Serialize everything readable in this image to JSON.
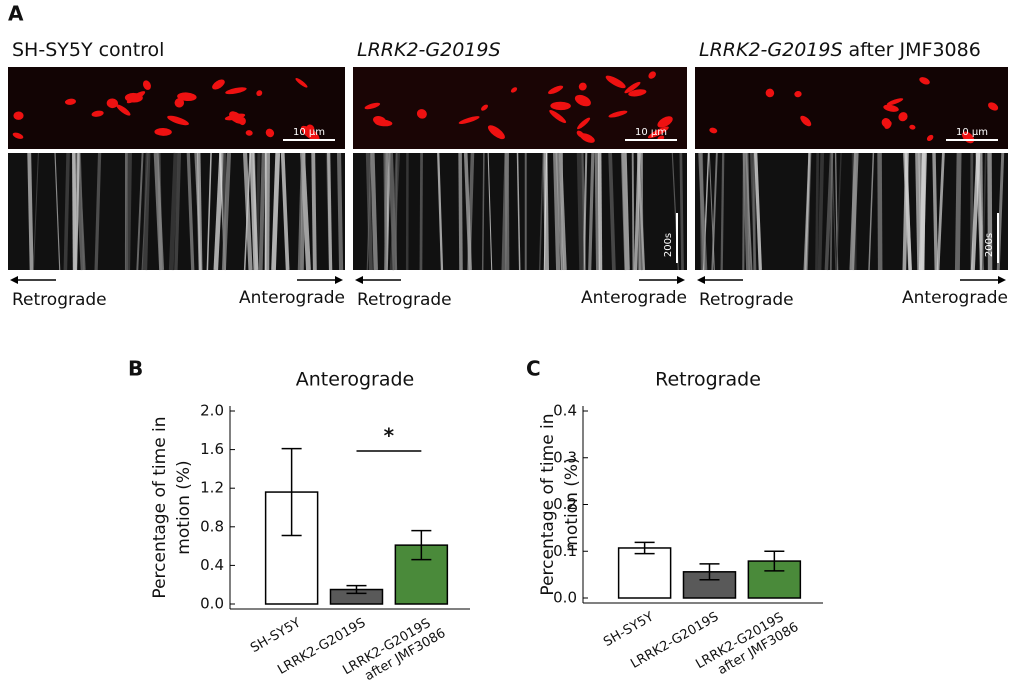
{
  "panel_a": {
    "label": "A",
    "panels": [
      {
        "title": "SH-SY5Y control",
        "scale_bar": "10 µm",
        "left": "Retrograde",
        "right": "Anterograde"
      },
      {
        "title_italic": "LRRK2-G2019S",
        "scale_bar": "10 µm",
        "time_bar": "200s",
        "left": "Retrograde",
        "right": "Anterograde"
      },
      {
        "title_italic": "LRRK2-G2019S",
        "title": "after JMF3086",
        "scale_bar": "10 µm",
        "time_bar": "200s",
        "left": "Retrograde",
        "right": "Anterograde"
      }
    ]
  },
  "chart_data": [
    {
      "type": "bar",
      "panel_label": "B",
      "title": "Anterograde",
      "y_label": [
        "Percentage of time in",
        "motion (%)"
      ],
      "categories": [
        "SH-SY5Y",
        "LRRK2-G2019S",
        "LRRK2-G2019S after JMF3086"
      ],
      "values": [
        1.16,
        0.15,
        0.61
      ],
      "errors": [
        0.45,
        0.04,
        0.15
      ],
      "colors": [
        "#ffffff",
        "#595959",
        "#4a8a3a"
      ],
      "ylim": [
        0,
        2.0
      ],
      "yticks": [
        {
          "value": 0,
          "label": "0.0"
        },
        0.4,
        0.8,
        1.2,
        1.6,
        {
          "value": 2.0,
          "label": "2.0"
        }
      ],
      "significance": "*"
    },
    {
      "type": "bar",
      "panel_label": "C",
      "title": "Retrograde",
      "y_label": [
        "Percentage of time in",
        "motion (%)"
      ],
      "categories": [
        "SH-SY5Y",
        "LRRK2-G2019S",
        "LRRK2-G2019S after JMF3086"
      ],
      "values": [
        0.107,
        0.056,
        0.079
      ],
      "errors": [
        0.012,
        0.017,
        0.021
      ],
      "colors": [
        "#ffffff",
        "#595959",
        "#4a8a3a"
      ],
      "ylim": [
        0,
        0.4
      ],
      "yticks": [
        {
          "value": 0,
          "label": "0.0"
        },
        0.1,
        0.2,
        0.3,
        0.4
      ]
    }
  ]
}
